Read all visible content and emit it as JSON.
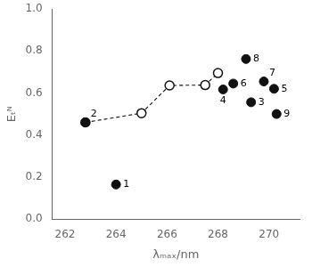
{
  "chart_data": {
    "type": "scatter",
    "x_label": "λₘₐₓ/nm",
    "y_label": "Eₜᴺ",
    "series": [
      {
        "x": [
          262.8,
          265.0,
          266.1,
          267.5,
          268.0
        ],
        "values": [
          0.46,
          0.504,
          0.636,
          0.638,
          0.695
        ],
        "color": "#111111",
        "marker": "circle_open",
        "line_style": "dashed"
      },
      {
        "x": [
          264.0,
          262.8,
          269.3,
          268.2,
          270.2,
          268.6,
          269.8,
          269.1,
          270.3
        ],
        "values": [
          0.164,
          0.46,
          0.556,
          0.617,
          0.62,
          0.645,
          0.655,
          0.762,
          0.5
        ],
        "labels": [
          "1",
          "2",
          "3",
          "4",
          "5",
          "6",
          "7",
          "8",
          "9"
        ],
        "color": "#111111",
        "marker": "circle",
        "line_style": "none"
      }
    ],
    "xlim": [
      261.5,
      271.2
    ],
    "ylim": [
      0.0,
      1.0
    ],
    "xticks": [
      262,
      264,
      266,
      268,
      270
    ],
    "yticks": [
      {
        "value": 0.0,
        "label": "0.0"
      },
      0.2,
      0.4,
      0.6,
      0.8,
      {
        "value": 1.0,
        "label": "1.0"
      }
    ],
    "grid": false
  }
}
